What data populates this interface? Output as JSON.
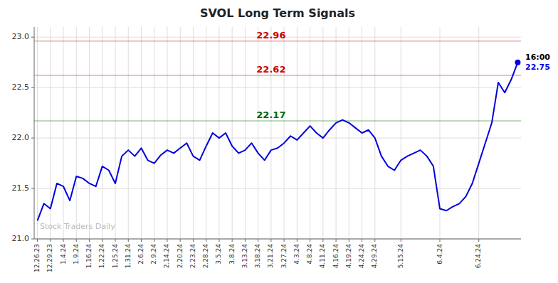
{
  "chart_data": {
    "type": "line",
    "title": "SVOL Long Term Signals",
    "color": "#0000dd",
    "grid": true,
    "ylim": [
      21.0,
      23.1
    ],
    "yticks": [
      {
        "value": 21.0,
        "label": "21.0"
      },
      21.5,
      {
        "value": 22.0,
        "label": "22.0"
      },
      22.5,
      {
        "value": 23.0,
        "label": "23.0"
      }
    ],
    "categories": [
      "12.26.23",
      null,
      "12.29.23",
      null,
      "1.4.24",
      null,
      "1.9.24",
      null,
      "1.16.24",
      null,
      "1.22.24",
      null,
      "1.25.24",
      null,
      "1.31.24",
      null,
      "2.6.24",
      null,
      "2.9.24",
      null,
      "2.14.24",
      null,
      "2.20.24",
      null,
      "2.23.24",
      null,
      "2.28.24",
      null,
      "3.5.24",
      null,
      "3.8.24",
      null,
      "3.13.24",
      null,
      "3.18.24",
      null,
      "3.21.24",
      null,
      "3.27.24",
      null,
      "4.3.24",
      null,
      "4.8.24",
      null,
      "4.11.24",
      null,
      "4.16.24",
      null,
      "4.19.24",
      null,
      "4.24.24",
      null,
      "4.29.24",
      null,
      null,
      null,
      "5.15.24",
      null,
      null,
      null,
      null,
      null,
      "6.4.24",
      null,
      null,
      null,
      null,
      null,
      "6.24.24",
      null,
      null,
      null,
      null,
      null,
      null
    ],
    "values": [
      21.18,
      21.35,
      21.3,
      21.55,
      21.52,
      21.38,
      21.62,
      21.6,
      21.55,
      21.52,
      21.72,
      21.68,
      21.55,
      21.82,
      21.88,
      21.82,
      21.9,
      21.78,
      21.75,
      21.83,
      21.88,
      21.85,
      21.9,
      21.95,
      21.82,
      21.78,
      21.92,
      22.05,
      22.0,
      22.05,
      21.92,
      21.85,
      21.88,
      21.95,
      21.85,
      21.78,
      21.88,
      21.9,
      21.95,
      22.02,
      21.98,
      22.05,
      22.12,
      22.05,
      22.0,
      22.08,
      22.15,
      22.18,
      22.15,
      22.1,
      22.05,
      22.08,
      22.0,
      21.82,
      21.72,
      21.68,
      21.78,
      21.82,
      21.85,
      21.88,
      21.82,
      21.72,
      21.3,
      21.28,
      21.32,
      21.35,
      21.42,
      21.55,
      21.75,
      21.95,
      22.15,
      22.55,
      22.45,
      22.58,
      22.75
    ],
    "annotations": [
      {
        "text": "22.96",
        "value": 22.96,
        "color": "#cc0000"
      },
      {
        "text": "22.62",
        "value": 22.62,
        "color": "#cc0000"
      },
      {
        "text": "22.17",
        "value": 22.17,
        "color": "#006600"
      }
    ],
    "end_label": {
      "text": "16:00",
      "value": 22.75
    },
    "watermark": "Stock Traders Daily"
  }
}
